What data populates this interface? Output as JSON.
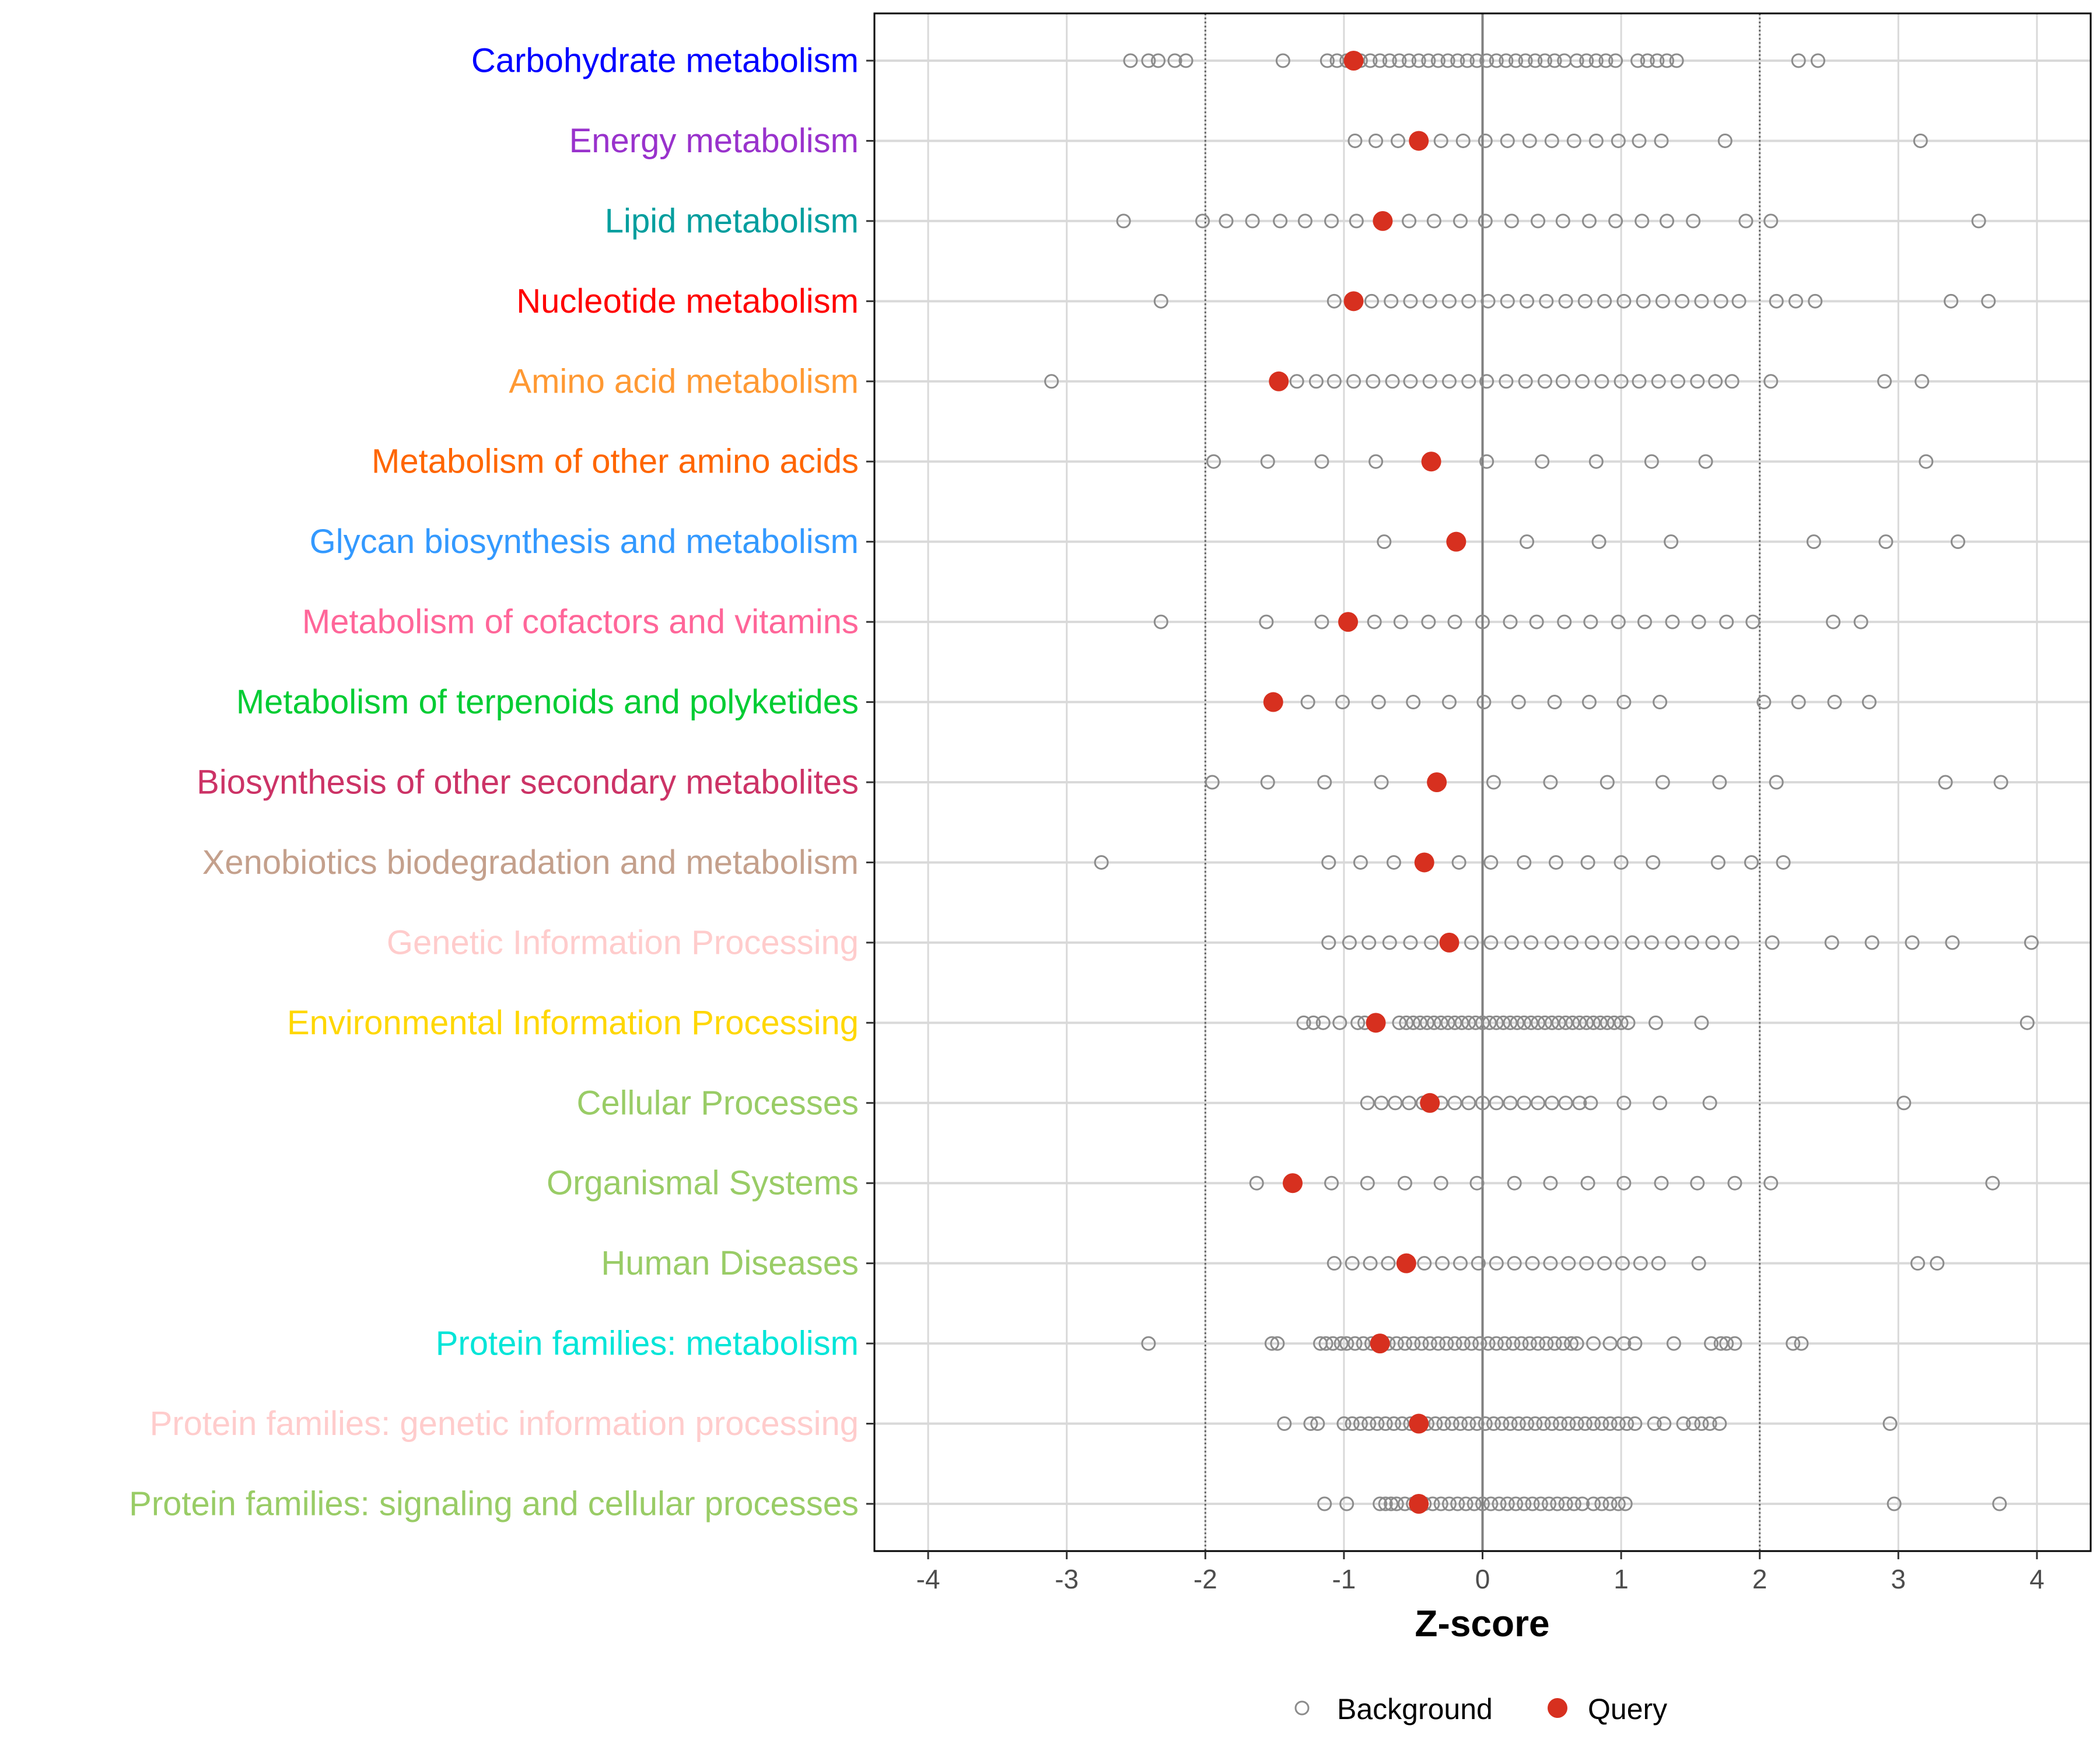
{
  "chart_data": {
    "type": "scatter",
    "title": "",
    "xlabel": "Z-score",
    "ylabel": "",
    "xlim": [
      -4.4,
      4.4
    ],
    "xticks": [
      -4,
      -3,
      -2,
      -1,
      0,
      1,
      2,
      3,
      4
    ],
    "xtick_labels": [
      "-4",
      "-3",
      "-2",
      "-1",
      "0",
      "1",
      "2",
      "3",
      "4"
    ],
    "reference_lines": {
      "dotted": [
        -2,
        2
      ],
      "solid": [
        0
      ]
    },
    "grid": true,
    "legend": {
      "placement": "bottom",
      "entries": [
        {
          "name": "Background",
          "style": "open-circle",
          "color": "#8c8c8c"
        },
        {
          "name": "Query",
          "style": "filled-circle",
          "color": "#D7301F"
        }
      ]
    },
    "categories": [
      {
        "label": "Carbohydrate metabolism",
        "color": "#0000FF",
        "query": -0.93,
        "background": [
          -2.54,
          -2.41,
          -2.34,
          -2.22,
          -2.14,
          -1.44,
          -1.12,
          -1.05,
          -0.98,
          -0.88,
          -0.81,
          -0.74,
          -0.67,
          -0.6,
          -0.53,
          -0.46,
          -0.39,
          -0.32,
          -0.25,
          -0.18,
          -0.11,
          -0.04,
          0.03,
          0.1,
          0.17,
          0.24,
          0.31,
          0.38,
          0.45,
          0.52,
          0.59,
          0.68,
          0.75,
          0.82,
          0.89,
          0.96,
          1.12,
          1.19,
          1.26,
          1.33,
          1.4,
          2.28,
          2.42
        ]
      },
      {
        "label": "Energy metabolism",
        "color": "#9932CC",
        "query": -0.46,
        "background": [
          -0.92,
          -0.77,
          -0.61,
          -0.3,
          -0.14,
          0.02,
          0.18,
          0.34,
          0.5,
          0.66,
          0.82,
          0.98,
          1.13,
          1.29,
          1.75,
          3.16
        ]
      },
      {
        "label": "Lipid metabolism",
        "color": "#009E9E",
        "query": -0.72,
        "background": [
          -2.59,
          -2.02,
          -1.85,
          -1.66,
          -1.46,
          -1.28,
          -1.09,
          -0.91,
          -0.53,
          -0.35,
          -0.16,
          0.02,
          0.21,
          0.4,
          0.58,
          0.77,
          0.96,
          1.15,
          1.33,
          1.52,
          1.9,
          2.08,
          3.58
        ]
      },
      {
        "label": "Nucleotide metabolism",
        "color": "#FF0000",
        "query": -0.93,
        "background": [
          -2.32,
          -1.07,
          -0.8,
          -0.66,
          -0.52,
          -0.38,
          -0.24,
          -0.1,
          0.04,
          0.18,
          0.32,
          0.46,
          0.6,
          0.74,
          0.88,
          1.02,
          1.16,
          1.3,
          1.44,
          1.58,
          1.72,
          1.85,
          2.12,
          2.26,
          2.4,
          3.38,
          3.65
        ]
      },
      {
        "label": "Amino acid metabolism",
        "color": "#FF9933",
        "query": -1.47,
        "background": [
          -3.11,
          -1.34,
          -1.2,
          -1.07,
          -0.93,
          -0.79,
          -0.65,
          -0.52,
          -0.38,
          -0.24,
          -0.1,
          0.03,
          0.17,
          0.31,
          0.45,
          0.58,
          0.72,
          0.86,
          1.0,
          1.13,
          1.27,
          1.41,
          1.55,
          1.68,
          1.8,
          2.08,
          2.9,
          3.17
        ]
      },
      {
        "label": "Metabolism of other amino acids",
        "color": "#FF6600",
        "query": -0.37,
        "background": [
          -1.94,
          -1.55,
          -1.16,
          -0.77,
          0.03,
          0.43,
          0.82,
          1.22,
          1.61,
          3.2
        ]
      },
      {
        "label": "Glycan biosynthesis and metabolism",
        "color": "#3399FF",
        "query": -0.19,
        "background": [
          -0.71,
          0.32,
          0.84,
          1.36,
          2.39,
          2.91,
          3.43
        ]
      },
      {
        "label": "Metabolism of cofactors and vitamins",
        "color": "#FF6699",
        "query": -0.97,
        "background": [
          -2.32,
          -1.56,
          -1.16,
          -0.78,
          -0.59,
          -0.39,
          -0.2,
          0,
          0.2,
          0.39,
          0.59,
          0.78,
          0.98,
          1.17,
          1.37,
          1.56,
          1.76,
          1.95,
          2.53,
          2.73
        ]
      },
      {
        "label": "Metabolism of terpenoids and polyketides",
        "color": "#00CC33",
        "query": -1.51,
        "background": [
          -1.26,
          -1.01,
          -0.75,
          -0.5,
          -0.24,
          0.01,
          0.26,
          0.52,
          0.77,
          1.02,
          1.28,
          2.03,
          2.28,
          2.54,
          2.79
        ]
      },
      {
        "label": "Biosynthesis of other secondary metabolites",
        "color": "#CC3366",
        "query": -0.33,
        "background": [
          -1.95,
          -1.55,
          -1.14,
          -0.73,
          0.08,
          0.49,
          0.9,
          1.3,
          1.71,
          2.12,
          3.34,
          3.74
        ]
      },
      {
        "label": "Xenobiotics biodegradation and metabolism",
        "color": "#C4A08C",
        "query": -0.42,
        "background": [
          -2.75,
          -1.11,
          -0.88,
          -0.64,
          -0.17,
          0.06,
          0.3,
          0.53,
          0.76,
          1.0,
          1.23,
          1.7,
          1.94,
          2.17
        ]
      },
      {
        "label": "Genetic Information Processing",
        "color": "#FFCCCC",
        "query": -0.24,
        "background": [
          -1.11,
          -0.96,
          -0.82,
          -0.67,
          -0.52,
          -0.37,
          -0.08,
          0.06,
          0.21,
          0.35,
          0.5,
          0.64,
          0.79,
          0.93,
          1.08,
          1.22,
          1.37,
          1.51,
          1.66,
          1.8,
          2.09,
          2.52,
          2.81,
          3.1,
          3.39,
          3.96
        ]
      },
      {
        "label": "Environmental Information Processing",
        "color": "#FFD700",
        "query": -0.77,
        "background": [
          -1.29,
          -1.22,
          -1.15,
          -1.03,
          -0.9,
          -0.85,
          -0.6,
          -0.55,
          -0.5,
          -0.45,
          -0.4,
          -0.35,
          -0.3,
          -0.25,
          -0.2,
          -0.15,
          -0.1,
          -0.05,
          0,
          0.05,
          0.1,
          0.15,
          0.2,
          0.25,
          0.3,
          0.35,
          0.4,
          0.45,
          0.5,
          0.55,
          0.6,
          0.65,
          0.7,
          0.75,
          0.8,
          0.85,
          0.9,
          0.95,
          1.0,
          1.05,
          1.25,
          1.58,
          3.93
        ]
      },
      {
        "label": "Cellular Processes",
        "color": "#99CC66",
        "query": -0.38,
        "background": [
          -0.83,
          -0.73,
          -0.63,
          -0.53,
          -0.43,
          -0.3,
          -0.2,
          -0.1,
          0,
          0.1,
          0.2,
          0.3,
          0.4,
          0.5,
          0.6,
          0.7,
          0.78,
          1.02,
          1.28,
          1.64,
          3.04
        ]
      },
      {
        "label": "Organismal Systems",
        "color": "#99CC66",
        "query": -1.37,
        "background": [
          -1.63,
          -1.09,
          -0.83,
          -0.56,
          -0.3,
          -0.04,
          0.23,
          0.49,
          0.76,
          1.02,
          1.29,
          1.55,
          1.82,
          2.08,
          3.68
        ]
      },
      {
        "label": "Human Diseases",
        "color": "#99CC66",
        "query": -0.55,
        "background": [
          -1.07,
          -0.94,
          -0.81,
          -0.68,
          -0.42,
          -0.29,
          -0.16,
          -0.03,
          0.1,
          0.23,
          0.36,
          0.49,
          0.62,
          0.75,
          0.88,
          1.01,
          1.14,
          1.27,
          1.56,
          3.14,
          3.28
        ]
      },
      {
        "label": "Protein families: metabolism",
        "color": "#00E5D8",
        "query": -0.74,
        "background": [
          -2.41,
          -1.52,
          -1.48,
          -1.17,
          -1.13,
          -1.08,
          -1.02,
          -0.98,
          -0.92,
          -0.86,
          -0.8,
          -0.74,
          -0.68,
          -0.62,
          -0.56,
          -0.5,
          -0.44,
          -0.38,
          -0.32,
          -0.26,
          -0.2,
          -0.14,
          -0.08,
          -0.02,
          0.04,
          0.1,
          0.16,
          0.22,
          0.28,
          0.34,
          0.4,
          0.46,
          0.52,
          0.58,
          0.64,
          0.68,
          0.8,
          0.92,
          1.02,
          1.1,
          1.38,
          1.65,
          1.72,
          1.76,
          1.82,
          2.24,
          2.3
        ]
      },
      {
        "label": "Protein families: genetic information processing",
        "color": "#FFCCCC",
        "query": -0.46,
        "background": [
          -1.43,
          -1.24,
          -1.19,
          -1.0,
          -0.94,
          -0.88,
          -0.82,
          -0.76,
          -0.7,
          -0.64,
          -0.58,
          -0.52,
          -0.4,
          -0.34,
          -0.28,
          -0.22,
          -0.16,
          -0.1,
          -0.04,
          0.02,
          0.08,
          0.14,
          0.2,
          0.26,
          0.32,
          0.38,
          0.44,
          0.5,
          0.56,
          0.62,
          0.68,
          0.74,
          0.8,
          0.86,
          0.92,
          0.98,
          1.04,
          1.1,
          1.24,
          1.31,
          1.45,
          1.52,
          1.58,
          1.64,
          1.71,
          2.94
        ]
      },
      {
        "label": "Protein families: signaling and cellular processes",
        "color": "#99CC66",
        "query": -0.46,
        "background": [
          -1.14,
          -0.98,
          -0.74,
          -0.7,
          -0.66,
          -0.62,
          -0.56,
          -0.5,
          -0.42,
          -0.36,
          -0.3,
          -0.24,
          -0.18,
          -0.12,
          -0.06,
          0,
          0.06,
          0.12,
          0.18,
          0.24,
          0.3,
          0.36,
          0.42,
          0.48,
          0.54,
          0.6,
          0.66,
          0.72,
          0.8,
          0.86,
          0.92,
          0.98,
          1.03,
          2.97,
          3.73
        ]
      }
    ]
  }
}
